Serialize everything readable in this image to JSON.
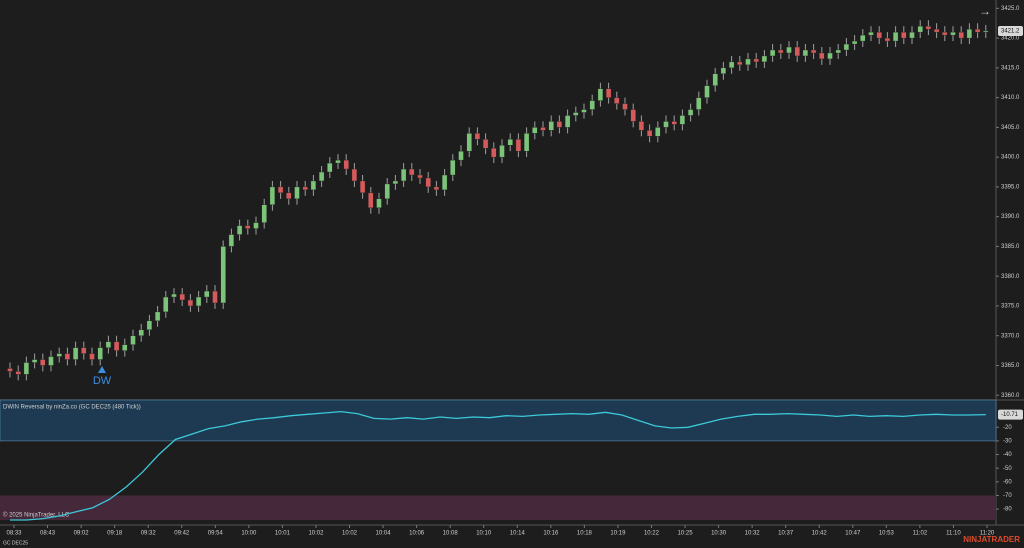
{
  "chart_data": [
    {
      "type": "candlestick",
      "instrument": "GC DEC25",
      "up_color": "#7cc47a",
      "down_color": "#d45b5b",
      "wick_color": "#a0a0a0",
      "ylim": [
        3359.2,
        3426.4
      ],
      "yticks": [
        {
          "value": 3360,
          "label": "3360.0"
        },
        {
          "value": 3365,
          "label": "3365.0"
        },
        {
          "value": 3370,
          "label": "3370.0"
        },
        {
          "value": 3375,
          "label": "3375.0"
        },
        {
          "value": 3380,
          "label": "3380.0"
        },
        {
          "value": 3385,
          "label": "3385.0"
        },
        {
          "value": 3390,
          "label": "3390.0"
        },
        {
          "value": 3395,
          "label": "3395.0"
        },
        {
          "value": 3400,
          "label": "3400.0"
        },
        {
          "value": 3405,
          "label": "3405.0"
        },
        {
          "value": 3410,
          "label": "3410.0"
        },
        {
          "value": 3415,
          "label": "3415.0"
        },
        {
          "value": 3420,
          "label": "3420.0"
        },
        {
          "value": 3425,
          "label": "3425.0"
        }
      ],
      "last_label": "3421.2",
      "signal": "DW",
      "open": [
        3364.5,
        3364,
        3363.5,
        3365.5,
        3366,
        3365,
        3366.5,
        3367,
        3366,
        3368,
        3367,
        3366,
        3368,
        3369,
        3367.5,
        3368.5,
        3370,
        3371,
        3372.5,
        3374,
        3376.5,
        3377,
        3376,
        3375,
        3376.5,
        3377.5,
        3375.5,
        3385,
        3387,
        3388.5,
        3388,
        3389,
        3392,
        3395,
        3394,
        3393,
        3395,
        3394.5,
        3396,
        3397.5,
        3399,
        3399.5,
        3398,
        3396,
        3394,
        3391.5,
        3393,
        3395.5,
        3396,
        3398,
        3397,
        3396.5,
        3395,
        3394.5,
        3397,
        3399.5,
        3401,
        3404,
        3403,
        3401.5,
        3400,
        3402,
        3403,
        3401,
        3404,
        3405,
        3404.5,
        3406,
        3405,
        3407,
        3407.5,
        3408,
        3409.5,
        3411.5,
        3410,
        3409,
        3408,
        3406,
        3404.5,
        3403.5,
        3405,
        3406,
        3405.5,
        3407,
        3408,
        3410,
        3412,
        3414,
        3415,
        3416,
        3415.5,
        3416.5,
        3416,
        3417,
        3418,
        3417.5,
        3418.5,
        3417,
        3418,
        3417.5,
        3416.5,
        3417.5,
        3418,
        3419,
        3419.5,
        3420.5,
        3421,
        3420,
        3419.5,
        3421,
        3420,
        3421,
        3422,
        3421.5,
        3421,
        3420.5,
        3421,
        3420,
        3421.5,
        3421
      ],
      "high": [
        3365.5,
        3365,
        3366.5,
        3367,
        3367,
        3367.5,
        3368,
        3368,
        3369,
        3369,
        3368,
        3369,
        3370,
        3370,
        3369.5,
        3371,
        3372,
        3373.5,
        3375,
        3377.5,
        3378,
        3378,
        3377,
        3377.5,
        3378.5,
        3378.5,
        3386,
        3388,
        3389.5,
        3389.5,
        3390,
        3393,
        3396,
        3396,
        3395,
        3396,
        3396,
        3397,
        3398.5,
        3400,
        3400.5,
        3400.5,
        3399,
        3397,
        3395,
        3394,
        3396.5,
        3397,
        3399,
        3399,
        3398,
        3397.5,
        3396,
        3398,
        3400.5,
        3402,
        3405,
        3405,
        3404,
        3402.5,
        3403,
        3404,
        3404,
        3405,
        3406,
        3406,
        3407,
        3407,
        3408,
        3408.5,
        3409,
        3410.5,
        3412.5,
        3412.5,
        3411,
        3410,
        3409,
        3407,
        3405.5,
        3406,
        3407,
        3407,
        3408,
        3409,
        3411,
        3413,
        3415,
        3416,
        3417,
        3417,
        3417.5,
        3417.5,
        3418,
        3419,
        3419,
        3419.5,
        3419.5,
        3419,
        3419,
        3418.5,
        3418.5,
        3419,
        3420,
        3420.5,
        3421.5,
        3422,
        3422,
        3421,
        3422,
        3422,
        3422,
        3423,
        3423,
        3422.5,
        3422,
        3422,
        3422,
        3422.5,
        3422.5,
        3422.2
      ],
      "low": [
        3363,
        3362.5,
        3362.5,
        3364.5,
        3364,
        3364,
        3365.5,
        3365,
        3365,
        3366,
        3365,
        3365,
        3367,
        3366.5,
        3366.5,
        3367.5,
        3369,
        3370,
        3371.5,
        3373,
        3375.5,
        3375,
        3374,
        3374,
        3375.5,
        3374.5,
        3374.5,
        3384,
        3386,
        3387,
        3387,
        3388,
        3391,
        3393,
        3392,
        3392,
        3393.5,
        3393.5,
        3395,
        3396.5,
        3398,
        3397,
        3395,
        3393,
        3390.5,
        3390.5,
        3392,
        3394.5,
        3395,
        3396,
        3395.5,
        3394,
        3393.5,
        3393.5,
        3396,
        3398.5,
        3400,
        3402,
        3400.5,
        3399,
        3399,
        3401,
        3400,
        3400,
        3403,
        3403.5,
        3403.5,
        3404,
        3404,
        3406,
        3406.5,
        3407,
        3408.5,
        3409,
        3408,
        3407,
        3405,
        3403.5,
        3402.5,
        3402.5,
        3404,
        3404.5,
        3404.5,
        3406,
        3407,
        3409,
        3411,
        3413,
        3414,
        3414.5,
        3414.5,
        3415,
        3415,
        3416,
        3416.5,
        3416.5,
        3416,
        3416,
        3416.5,
        3415.5,
        3415.5,
        3416.5,
        3417,
        3418,
        3418.5,
        3419.5,
        3419,
        3418.5,
        3418.5,
        3419,
        3419,
        3420,
        3420.5,
        3420,
        3419.5,
        3419.5,
        3419,
        3419,
        3420,
        3420
      ],
      "close": [
        3364,
        3363.5,
        3365.5,
        3366,
        3365,
        3366.5,
        3367,
        3366,
        3368,
        3367,
        3366,
        3368,
        3369,
        3367.5,
        3368.5,
        3370,
        3371,
        3372.5,
        3374,
        3376.5,
        3377,
        3376,
        3375,
        3376.5,
        3377.5,
        3375.5,
        3385,
        3387,
        3388.5,
        3388,
        3389,
        3392,
        3395,
        3394,
        3393,
        3395,
        3394.5,
        3396,
        3397.5,
        3399,
        3399.5,
        3398,
        3396,
        3394,
        3391.5,
        3393,
        3395.5,
        3396,
        3398,
        3397,
        3396.5,
        3395,
        3394.5,
        3397,
        3399.5,
        3401,
        3404,
        3403,
        3401.5,
        3400,
        3402,
        3403,
        3401,
        3404,
        3405,
        3404.5,
        3406,
        3405,
        3407,
        3407.5,
        3408,
        3409.5,
        3411.5,
        3410,
        3409,
        3408,
        3406,
        3404.5,
        3403.5,
        3405,
        3406,
        3405.5,
        3407,
        3408,
        3410,
        3412,
        3414,
        3415,
        3416,
        3415.5,
        3416.5,
        3416,
        3417,
        3418,
        3417.5,
        3418.5,
        3417,
        3418,
        3417.5,
        3416.5,
        3417.5,
        3418,
        3419,
        3419.5,
        3420.5,
        3421,
        3420,
        3419.5,
        3421,
        3420,
        3421,
        3422,
        3421.5,
        3421,
        3420.5,
        3421,
        3420,
        3421.5,
        3421,
        3421.2
      ]
    },
    {
      "type": "line",
      "title": "DWIN Reversal by ninZa.co (GC DEC25 (480 Tick))",
      "color": "#3cc9d9",
      "upper_zone": [
        0,
        -30
      ],
      "upper_zone_color": "#1d3a52",
      "lower_zone": [
        -70,
        -88
      ],
      "lower_zone_color": "#45283a",
      "ylim": [
        -88,
        0
      ],
      "yticks": [
        -20,
        -30,
        -40,
        -50,
        -60,
        -70,
        -80
      ],
      "last_label": "-10.71",
      "values": [
        -88,
        -88,
        -87,
        -85,
        -82,
        -79,
        -73,
        -64,
        -53,
        -40,
        -29,
        -25,
        -21,
        -19,
        -16,
        -14,
        -13,
        -11.5,
        -10.5,
        -9.5,
        -8.5,
        -10,
        -13.5,
        -14,
        -13,
        -14,
        -12.5,
        -13.5,
        -12.5,
        -13,
        -11.5,
        -12,
        -11,
        -10.5,
        -10,
        -10.5,
        -9,
        -11,
        -15,
        -19,
        -20.5,
        -20,
        -17,
        -14,
        -12,
        -10.5,
        -10.5,
        -10,
        -10.5,
        -11,
        -12,
        -11,
        -12,
        -11.5,
        -12,
        -11,
        -10.5,
        -11,
        -11,
        -10.71
      ],
      "x_labels": [
        "08:33",
        "08:43",
        "09:02",
        "09:18",
        "09:32",
        "09:42",
        "09:54",
        "10:00",
        "10:01",
        "10:02",
        "10:02",
        "10:04",
        "10:06",
        "10:08",
        "10:10",
        "10:14",
        "10:16",
        "10:18",
        "10:19",
        "10:22",
        "10:25",
        "10:30",
        "10:32",
        "10:37",
        "10:42",
        "10:47",
        "10:53",
        "11:02",
        "11:10",
        "11:20"
      ]
    }
  ],
  "footer": {
    "copyright": "© 2025 NinjaTrader, LLC",
    "brand": "NINJATRADER"
  }
}
